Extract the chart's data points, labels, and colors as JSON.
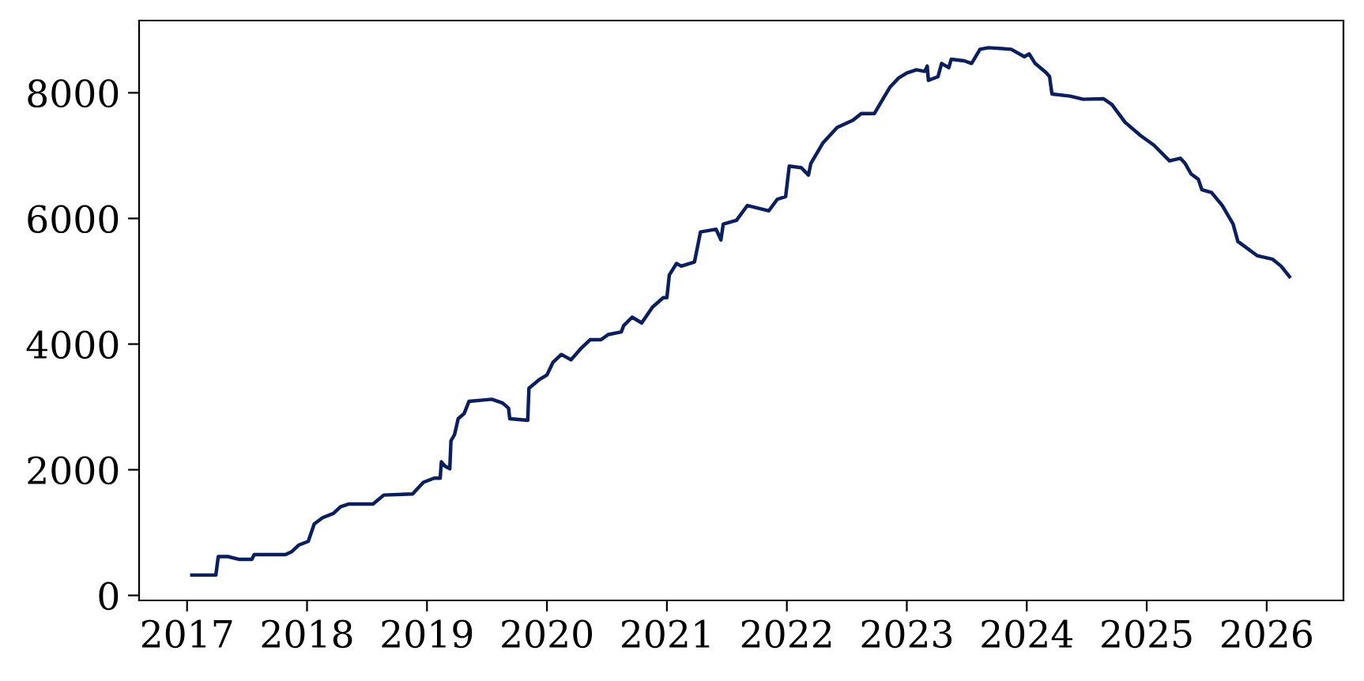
{
  "chart_data": {
    "type": "line",
    "xlim": [
      2016.6,
      2026.64
    ],
    "ylim": [
      -80,
      9150
    ],
    "xticks": [
      2017,
      2018,
      2019,
      2020,
      2021,
      2022,
      2023,
      2024,
      2025,
      2026
    ],
    "yticks": [
      0,
      2000,
      4000,
      6000,
      8000
    ],
    "grid": false,
    "legend": false,
    "marker": "none",
    "line_style": "solid",
    "series": [
      {
        "color": "#0b1f5c",
        "x": [
          2017.04,
          2017.24,
          2017.26,
          2017.34,
          2017.43,
          2017.54,
          2017.56,
          2017.82,
          2017.87,
          2017.93,
          2018.01,
          2018.06,
          2018.13,
          2018.22,
          2018.28,
          2018.35,
          2018.55,
          2018.64,
          2018.88,
          2018.97,
          2019.06,
          2019.11,
          2019.12,
          2019.15,
          2019.19,
          2019.2,
          2019.23,
          2019.26,
          2019.31,
          2019.35,
          2019.45,
          2019.54,
          2019.63,
          2019.68,
          2019.69,
          2019.84,
          2019.85,
          2019.94,
          2020.0,
          2020.05,
          2020.12,
          2020.2,
          2020.29,
          2020.36,
          2020.45,
          2020.51,
          2020.62,
          2020.64,
          2020.71,
          2020.79,
          2020.88,
          2020.97,
          2021.0,
          2021.02,
          2021.08,
          2021.12,
          2021.23,
          2021.28,
          2021.41,
          2021.45,
          2021.47,
          2021.58,
          2021.67,
          2021.85,
          2021.92,
          2021.99,
          2022.02,
          2022.12,
          2022.18,
          2022.2,
          2022.3,
          2022.42,
          2022.55,
          2022.62,
          2022.73,
          2022.82,
          2022.86,
          2022.93,
          2023.0,
          2023.08,
          2023.15,
          2023.17,
          2023.18,
          2023.26,
          2023.29,
          2023.35,
          2023.37,
          2023.48,
          2023.54,
          2023.61,
          2023.68,
          2023.87,
          2023.98,
          2024.02,
          2024.07,
          2024.16,
          2024.19,
          2024.21,
          2024.36,
          2024.47,
          2024.64,
          2024.71,
          2024.82,
          2024.95,
          2025.06,
          2025.19,
          2025.28,
          2025.32,
          2025.37,
          2025.43,
          2025.46,
          2025.54,
          2025.63,
          2025.72,
          2025.76,
          2025.92,
          2026.05,
          2026.12,
          2026.19
        ],
        "values": [
          324,
          324,
          618,
          618,
          575,
          575,
          650,
          650,
          693,
          800,
          860,
          1137,
          1237,
          1305,
          1412,
          1455,
          1455,
          1597,
          1614,
          1800,
          1866,
          1866,
          2126,
          2058,
          2016,
          2460,
          2561,
          2812,
          2896,
          3088,
          3106,
          3122,
          3063,
          2980,
          2812,
          2787,
          3297,
          3440,
          3508,
          3709,
          3835,
          3750,
          3943,
          4069,
          4069,
          4152,
          4194,
          4295,
          4428,
          4337,
          4589,
          4739,
          4739,
          5099,
          5283,
          5241,
          5308,
          5785,
          5828,
          5659,
          5911,
          5970,
          6205,
          6122,
          6305,
          6348,
          6833,
          6808,
          6690,
          6876,
          7200,
          7450,
          7562,
          7670,
          7670,
          7964,
          8090,
          8233,
          8316,
          8366,
          8341,
          8425,
          8198,
          8257,
          8467,
          8400,
          8534,
          8509,
          8467,
          8693,
          8718,
          8693,
          8575,
          8618,
          8467,
          8324,
          8257,
          7981,
          7947,
          7897,
          7905,
          7813,
          7529,
          7318,
          7167,
          6916,
          6958,
          6876,
          6707,
          6624,
          6456,
          6413,
          6205,
          5911,
          5634,
          5408,
          5350,
          5241,
          5074
        ]
      }
    ]
  }
}
